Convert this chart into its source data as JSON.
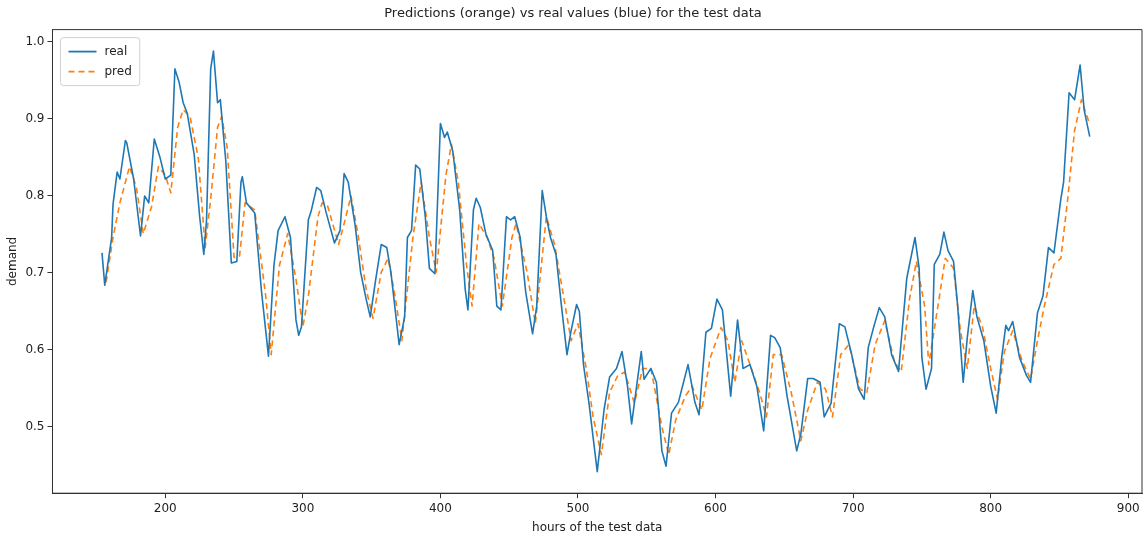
{
  "chart_data": {
    "type": "line",
    "title": "Predictions (orange) vs real values (blue) for the test data",
    "xlabel": "hours of the test data",
    "ylabel": "demand",
    "xlim": [
      118,
      910
    ],
    "xticks": [
      200,
      300,
      400,
      500,
      600,
      700,
      800,
      900
    ],
    "ylim": [
      0.414,
      1.016
    ],
    "yticks": [
      {
        "value": 0.5,
        "label": "0.5"
      },
      {
        "value": 0.6,
        "label": "0.6"
      },
      {
        "value": 0.7,
        "label": "0.7"
      },
      {
        "value": 0.8,
        "label": "0.8"
      },
      {
        "value": 0.9,
        "label": "0.9"
      },
      {
        "value": 1,
        "label": "1.0"
      }
    ],
    "grid": false,
    "legend": "top left",
    "marker": "none",
    "series": [
      {
        "name": "real",
        "color": "#1f77b4",
        "line_style": "solid",
        "x": [
          154,
          156,
          161,
          162,
          165,
          167,
          171,
          172,
          177,
          182,
          185,
          188,
          192,
          196,
          200,
          204,
          207,
          210,
          213,
          216,
          221,
          225,
          228,
          230,
          233,
          235,
          238,
          240,
          244,
          248,
          252,
          255,
          256,
          259,
          265,
          270,
          275,
          279,
          282,
          287,
          291,
          295,
          297,
          299,
          304,
          306,
          310,
          313,
          317,
          323,
          327,
          330,
          333,
          338,
          342,
          346,
          349,
          353,
          357,
          361,
          364,
          370,
          374,
          376,
          379,
          382,
          385,
          389,
          392,
          396,
          400,
          403,
          405,
          409,
          414,
          418,
          420,
          424,
          426,
          429,
          433,
          438,
          441,
          444,
          448,
          451,
          454,
          458,
          462,
          467,
          470,
          474,
          477,
          480,
          484,
          488,
          492,
          495,
          499,
          501,
          504,
          508,
          514,
          519,
          523,
          528,
          532,
          536,
          539,
          543,
          546,
          548,
          553,
          557,
          561,
          564,
          568,
          573,
          580,
          585,
          588,
          593,
          597,
          601,
          605,
          611,
          616,
          620,
          625,
          630,
          635,
          640,
          643,
          647,
          652,
          659,
          662,
          667,
          671,
          676,
          679,
          684,
          690,
          694,
          699,
          704,
          708,
          711,
          715,
          719,
          723,
          728,
          733,
          739,
          741,
          745,
          748,
          750,
          753,
          757,
          759,
          763,
          766,
          769,
          773,
          776,
          780,
          783,
          787,
          790,
          795,
          800,
          804,
          808,
          811,
          813,
          816,
          821,
          826,
          829,
          834,
          838,
          842,
          846,
          851,
          853,
          857,
          861,
          865,
          868,
          872
        ],
        "values": [
          0.726,
          0.684,
          0.746,
          0.789,
          0.831,
          0.822,
          0.872,
          0.869,
          0.822,
          0.748,
          0.8,
          0.791,
          0.874,
          0.851,
          0.822,
          0.827,
          0.965,
          0.948,
          0.921,
          0.907,
          0.854,
          0.773,
          0.724,
          0.769,
          0.965,
          0.988,
          0.921,
          0.925,
          0.845,
          0.713,
          0.715,
          0.818,
          0.825,
          0.791,
          0.778,
          0.675,
          0.592,
          0.71,
          0.755,
          0.773,
          0.746,
          0.639,
          0.619,
          0.63,
          0.769,
          0.78,
          0.811,
          0.807,
          0.778,
          0.739,
          0.755,
          0.829,
          0.818,
          0.762,
          0.701,
          0.666,
          0.643,
          0.692,
          0.737,
          0.733,
          0.701,
          0.607,
          0.643,
          0.746,
          0.755,
          0.84,
          0.835,
          0.773,
          0.706,
          0.699,
          0.894,
          0.876,
          0.883,
          0.858,
          0.782,
          0.679,
          0.652,
          0.782,
          0.797,
          0.785,
          0.751,
          0.729,
          0.657,
          0.652,
          0.773,
          0.769,
          0.773,
          0.746,
          0.675,
          0.621,
          0.657,
          0.807,
          0.773,
          0.746,
          0.724,
          0.657,
          0.594,
          0.625,
          0.659,
          0.65,
          0.581,
          0.531,
          0.442,
          0.523,
          0.565,
          0.576,
          0.598,
          0.553,
          0.504,
          0.558,
          0.598,
          0.562,
          0.576,
          0.558,
          0.469,
          0.449,
          0.518,
          0.532,
          0.581,
          0.532,
          0.516,
          0.623,
          0.628,
          0.666,
          0.652,
          0.54,
          0.639,
          0.576,
          0.581,
          0.553,
          0.495,
          0.619,
          0.616,
          0.603,
          0.54,
          0.469,
          0.491,
          0.563,
          0.563,
          0.558,
          0.513,
          0.531,
          0.634,
          0.63,
          0.594,
          0.549,
          0.536,
          0.603,
          0.63,
          0.655,
          0.643,
          0.594,
          0.572,
          0.693,
          0.711,
          0.746,
          0.706,
          0.59,
          0.549,
          0.576,
          0.711,
          0.724,
          0.753,
          0.729,
          0.715,
          0.657,
          0.558,
          0.616,
          0.677,
          0.643,
          0.612,
          0.553,
          0.518,
          0.59,
          0.632,
          0.625,
          0.637,
          0.59,
          0.567,
          0.558,
          0.648,
          0.67,
          0.733,
          0.726,
          0.796,
          0.818,
          0.934,
          0.925,
          0.97,
          0.911,
          0.877
        ]
      },
      {
        "name": "pred",
        "color": "#ff7f0e",
        "line_style": "dashed",
        "x": [
          157,
          162,
          167,
          174,
          179,
          184,
          190,
          195,
          200,
          204,
          209,
          213,
          218,
          224,
          229,
          233,
          238,
          241,
          245,
          250,
          254,
          258,
          265,
          273,
          277,
          283,
          289,
          295,
          300,
          304,
          311,
          314,
          318,
          326,
          330,
          335,
          340,
          346,
          351,
          357,
          362,
          367,
          372,
          380,
          386,
          392,
          397,
          404,
          408,
          413,
          419,
          423,
          428,
          434,
          439,
          445,
          452,
          455,
          463,
          469,
          477,
          483,
          489,
          495,
          500,
          506,
          511,
          517,
          523,
          529,
          534,
          541,
          547,
          553,
          561,
          566,
          571,
          578,
          583,
          590,
          596,
          604,
          609,
          614,
          619,
          626,
          632,
          637,
          642,
          648,
          655,
          662,
          667,
          674,
          680,
          685,
          691,
          697,
          705,
          710,
          716,
          723,
          730,
          735,
          741,
          746,
          752,
          755,
          762,
          767,
          773,
          778,
          783,
          788,
          794,
          800,
          805,
          810,
          816,
          823,
          829,
          834,
          839,
          846,
          851,
          856,
          861,
          866,
          872
        ],
        "values": [
          0.688,
          0.746,
          0.791,
          0.838,
          0.811,
          0.751,
          0.786,
          0.838,
          0.827,
          0.804,
          0.889,
          0.912,
          0.903,
          0.849,
          0.733,
          0.796,
          0.889,
          0.903,
          0.863,
          0.72,
          0.722,
          0.791,
          0.782,
          0.67,
          0.594,
          0.71,
          0.751,
          0.692,
          0.63,
          0.67,
          0.773,
          0.791,
          0.787,
          0.737,
          0.764,
          0.8,
          0.751,
          0.679,
          0.641,
          0.701,
          0.719,
          0.67,
          0.612,
          0.746,
          0.818,
          0.746,
          0.701,
          0.827,
          0.867,
          0.818,
          0.71,
          0.657,
          0.764,
          0.746,
          0.719,
          0.657,
          0.746,
          0.764,
          0.701,
          0.634,
          0.773,
          0.737,
          0.675,
          0.612,
          0.634,
          0.576,
          0.513,
          0.464,
          0.545,
          0.567,
          0.571,
          0.531,
          0.576,
          0.576,
          0.5,
          0.464,
          0.509,
          0.54,
          0.553,
          0.522,
          0.589,
          0.629,
          0.612,
          0.558,
          0.612,
          0.576,
          0.545,
          0.513,
          0.594,
          0.594,
          0.545,
          0.482,
          0.522,
          0.558,
          0.549,
          0.513,
          0.594,
          0.607,
          0.549,
          0.545,
          0.607,
          0.638,
          0.585,
          0.572,
          0.666,
          0.715,
          0.657,
          0.581,
          0.661,
          0.719,
          0.706,
          0.625,
          0.576,
          0.657,
          0.63,
          0.576,
          0.536,
          0.598,
          0.625,
          0.585,
          0.562,
          0.612,
          0.657,
          0.711,
          0.719,
          0.796,
          0.885,
          0.925,
          0.893
        ]
      }
    ]
  }
}
